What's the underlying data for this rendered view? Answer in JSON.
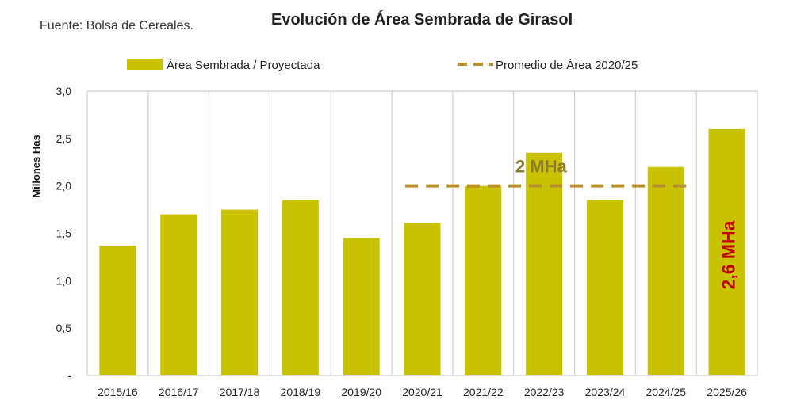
{
  "source": "Fuente: Bolsa de Cereales.",
  "chart_data": {
    "type": "bar",
    "title": "Evolución de Área Sembrada de Girasol",
    "ylabel": "Millones Has",
    "xlabel": "",
    "ylim": [
      0,
      3.0
    ],
    "yticks": [
      {
        "value": 0,
        "label": "-"
      },
      {
        "value": 0.5,
        "label": "0,5"
      },
      {
        "value": 1.0,
        "label": "1,0"
      },
      {
        "value": 1.5,
        "label": "1,5"
      },
      {
        "value": 2.0,
        "label": "2,0"
      },
      {
        "value": 2.5,
        "label": "2,5"
      },
      {
        "value": 3.0,
        "label": "3,0"
      }
    ],
    "categories": [
      "2015/16",
      "2016/17",
      "2017/18",
      "2018/19",
      "2019/20",
      "2020/21",
      "2021/22",
      "2022/23",
      "2023/24",
      "2024/25",
      "2025/26"
    ],
    "series": [
      {
        "name": "Área Sembrada / Proyectada",
        "values": [
          1.37,
          1.7,
          1.75,
          1.85,
          1.45,
          1.61,
          2.0,
          2.35,
          1.85,
          2.2,
          2.6
        ],
        "color": "#C9C200"
      }
    ],
    "average": {
      "name": "Promedio de Área 2020/25",
      "value": 2.0,
      "from": "2020/21",
      "to": "2024/25",
      "label": "2 MHa",
      "color": "#B8912E"
    },
    "highlight": {
      "category": "2025/26",
      "label": "2,6 MHa",
      "color": "#C00000"
    },
    "grid": "vertical",
    "legend": "top"
  }
}
